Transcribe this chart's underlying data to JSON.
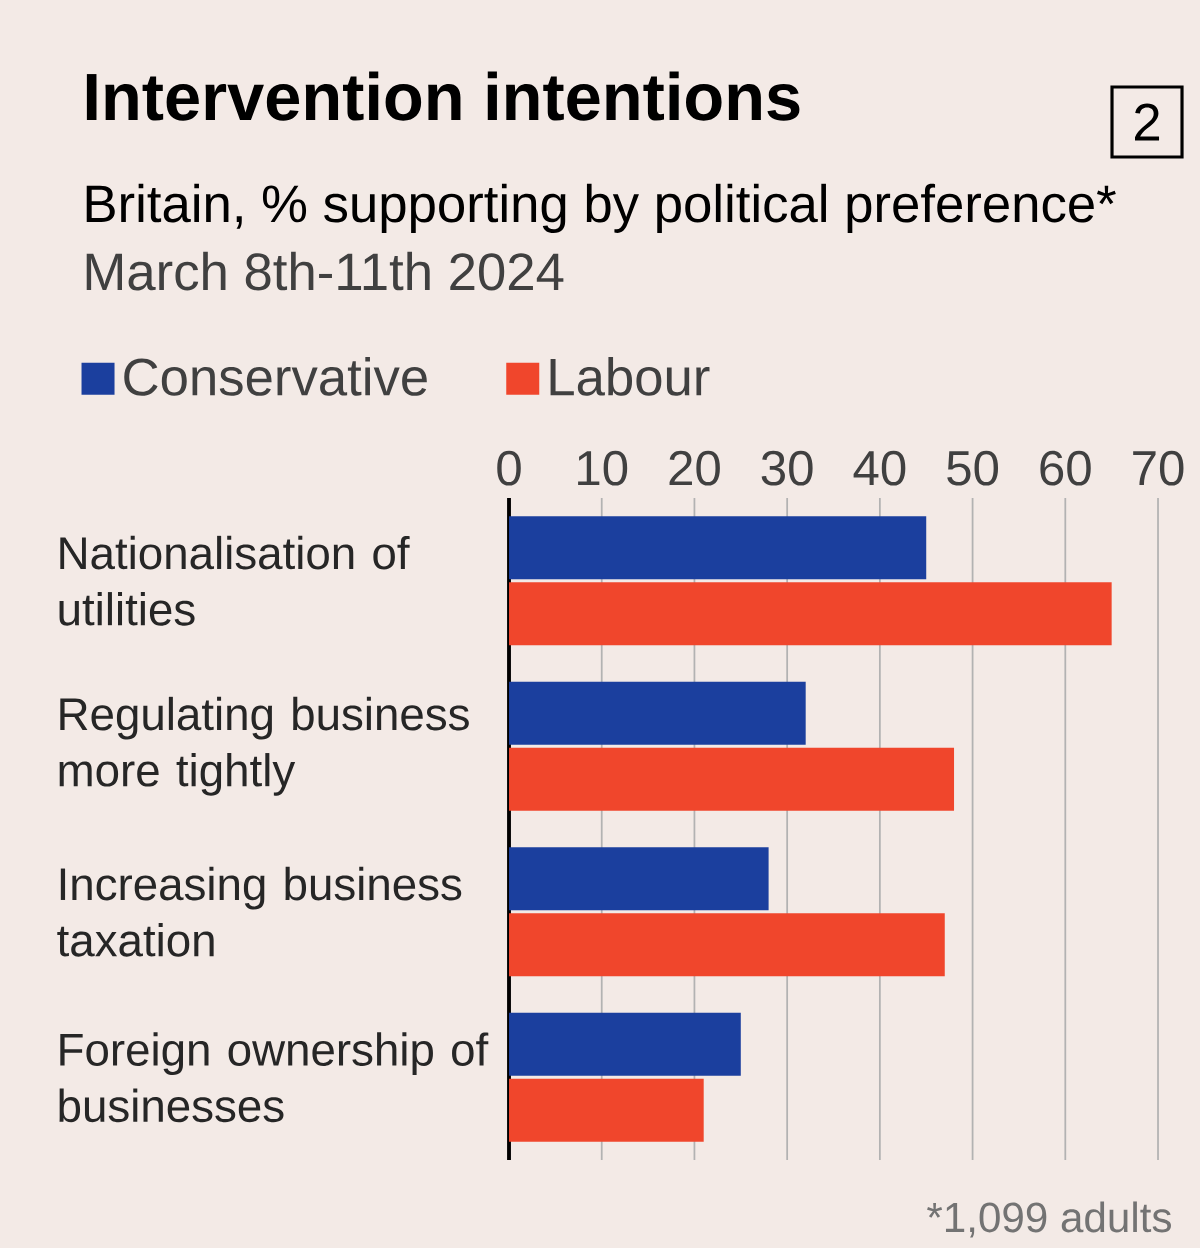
{
  "chart_data": {
    "type": "bar",
    "orientation": "horizontal",
    "title": "Intervention intentions",
    "subtitle": "Britain, % supporting by political preference*",
    "annotations": [
      "March 8th-11th 2024",
      "*1,099 adults",
      "2"
    ],
    "categories": [
      "Nationalisation of utilities",
      "Regulating business more tightly",
      "Increasing business taxation",
      "Foreign ownership of businesses"
    ],
    "series": [
      {
        "name": "Conservative",
        "color": "#1b3f9e",
        "values": [
          45,
          32,
          28,
          25
        ]
      },
      {
        "name": "Labour",
        "color": "#f0462c",
        "values": [
          65,
          48,
          47,
          21
        ]
      }
    ],
    "xlim": [
      0,
      70
    ],
    "xticks": [
      0,
      10,
      20,
      30,
      40,
      50,
      60,
      70
    ],
    "grid": "x",
    "legend": "top left"
  }
}
